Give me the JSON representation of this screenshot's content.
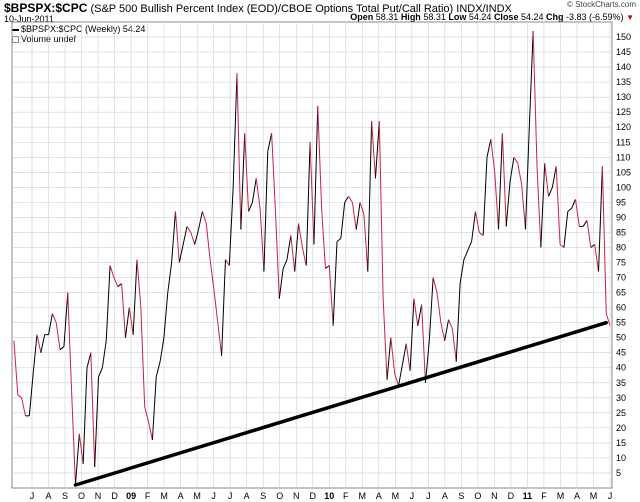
{
  "header": {
    "symbol": "$BPSPX:$CPC",
    "description": "(S&P 500 Bullish Percent Index (EOD)/CBOE Options Total Put/Call Ratio)",
    "exchange": "INDX/INDX",
    "date": "10-Jun-2011",
    "credit": "© StockCharts.com",
    "open_label": "Open",
    "open": "58.31",
    "high_label": "High",
    "high": "58.31",
    "low_label": "Low",
    "low": "54.24",
    "close_label": "Close",
    "close": "54.24",
    "chg_label": "Chg",
    "chg": "-3.83 (-6.59%)"
  },
  "legend": {
    "series": "$BPSPX:$CPC (Weekly) 54.24",
    "volume": "Volume undef"
  },
  "colors": {
    "up": "#000000",
    "down": "#cc2244",
    "grid": "#d0d0d0",
    "trend": "#000000"
  },
  "chart_data": {
    "type": "line",
    "ylim": [
      0,
      155
    ],
    "yticks": [
      5,
      10,
      15,
      20,
      25,
      30,
      35,
      40,
      45,
      50,
      55,
      60,
      65,
      70,
      75,
      80,
      85,
      90,
      95,
      100,
      105,
      110,
      115,
      120,
      125,
      130,
      135,
      140,
      145,
      150
    ],
    "xlabels": [
      "J",
      "A",
      "S",
      "O",
      "N",
      "D",
      "09",
      "F",
      "M",
      "A",
      "M",
      "J",
      "J",
      "A",
      "S",
      "O",
      "N",
      "D",
      "10",
      "F",
      "M",
      "A",
      "M",
      "J",
      "J",
      "A",
      "S",
      "O",
      "N",
      "D",
      "11",
      "F",
      "M",
      "A",
      "M",
      "J"
    ],
    "grid": true,
    "series": [
      {
        "values": [
          49,
          31,
          30,
          24,
          24,
          38,
          51,
          45,
          51,
          51,
          58,
          55,
          46,
          47,
          65,
          32,
          1,
          18,
          8,
          40,
          45,
          7,
          37,
          40,
          49,
          74,
          70,
          67,
          68,
          50,
          60,
          51,
          76,
          60,
          27,
          22,
          16,
          37,
          42,
          50,
          65,
          75,
          92,
          75,
          81,
          87,
          85,
          81,
          86,
          92,
          88,
          76,
          66,
          55,
          44,
          76,
          74,
          100,
          138,
          86,
          118,
          92,
          95,
          103,
          93,
          72,
          112,
          118,
          92,
          63,
          73,
          76,
          84,
          72,
          88,
          80,
          74,
          115,
          81,
          127,
          93,
          73,
          74,
          54,
          82,
          83,
          95,
          97,
          95,
          86,
          95,
          91,
          72,
          122,
          103,
          122,
          63,
          36,
          50,
          38,
          34,
          41,
          48,
          39,
          63,
          54,
          61,
          35,
          49,
          70,
          65,
          55,
          49,
          56,
          53,
          42,
          68,
          76,
          79,
          82,
          92,
          85,
          84,
          110,
          116,
          105,
          86,
          118,
          87,
          102,
          110,
          108,
          101,
          86,
          120,
          152,
          107,
          80,
          108,
          97,
          100,
          107,
          81,
          80,
          92,
          93,
          96,
          87,
          87,
          89,
          80,
          81,
          72,
          107,
          58,
          54
        ]
      }
    ],
    "trendline": {
      "from": [
        16,
        1
      ],
      "to": [
        154,
        55
      ]
    }
  }
}
